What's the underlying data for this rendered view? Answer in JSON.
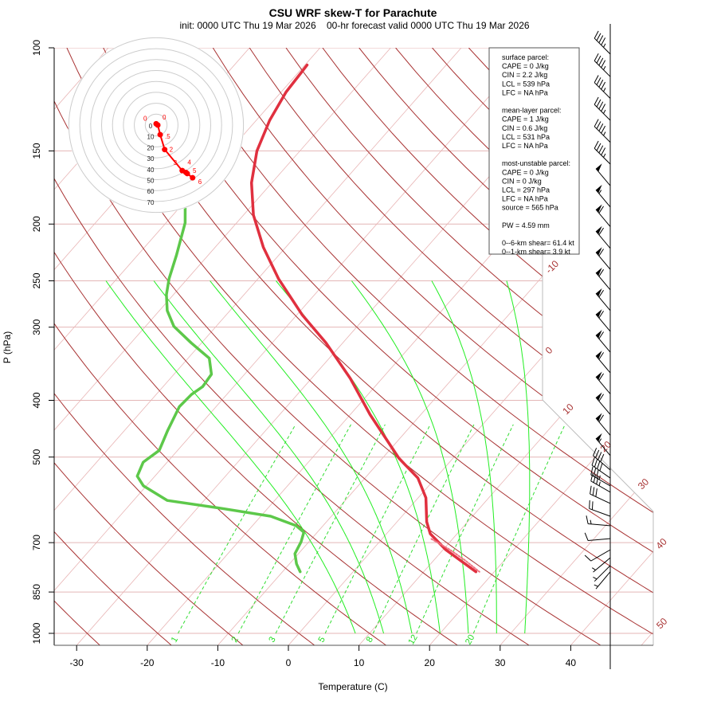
{
  "chart_data": {
    "type": "line",
    "title": "CSU WRF skew-T for Parachute",
    "subtitle": "init: 0000 UTC Thu 19 Mar 2026    00-hr forecast valid 0000 UTC Thu 19 Mar 2026",
    "xlabel": "Temperature (C)",
    "ylabel": "P (hPa)",
    "x_ticks": [
      -30,
      -20,
      -10,
      0,
      10,
      20,
      30,
      40
    ],
    "y_ticks": [
      100,
      150,
      200,
      250,
      300,
      400,
      500,
      700,
      850,
      1000
    ],
    "y_scale": "log",
    "ylim": [
      1000,
      100
    ],
    "isotherm_labels": [
      -10,
      0,
      10,
      20,
      30,
      40,
      50
    ],
    "mixing_ratio_labels": [
      1,
      2,
      3,
      5,
      8,
      12,
      20
    ],
    "colors": {
      "temperature": "#e0303f",
      "dewpoint": "#5dc84a",
      "parcel": "#f07080",
      "dry_adiabat": "#a83232",
      "isotherm": "#e8b4b4",
      "moist_adiabat": "#22ee22",
      "mixing_ratio": "#33dd33",
      "hodograph": "#ff0000"
    },
    "series": [
      {
        "name": "temperature",
        "points_p_T": [
          [
            107,
            -69.7
          ],
          [
            119,
            -69.3
          ],
          [
            133,
            -68.1
          ],
          [
            150,
            -66.1
          ],
          [
            170,
            -62.9
          ],
          [
            193,
            -58.6
          ],
          [
            219,
            -53.2
          ],
          [
            248,
            -47.1
          ],
          [
            286,
            -39.2
          ],
          [
            319,
            -32.4
          ],
          [
            367,
            -24.5
          ],
          [
            423,
            -17.2
          ],
          [
            502,
            -7.7
          ],
          [
            543,
            -2.5
          ],
          [
            587,
            1.1
          ],
          [
            645,
            4.2
          ],
          [
            676,
            6.2
          ],
          [
            720,
            10.4
          ],
          [
            785,
            17.4
          ]
        ]
      },
      {
        "name": "dewpoint",
        "points_p_T": [
          [
            107,
            -84.8
          ],
          [
            181,
            -70.3
          ],
          [
            199,
            -67.3
          ],
          [
            226,
            -64.5
          ],
          [
            248,
            -62.6
          ],
          [
            264,
            -61.0
          ],
          [
            281,
            -58.9
          ],
          [
            299,
            -56.0
          ],
          [
            319,
            -51.5
          ],
          [
            339,
            -47.0
          ],
          [
            361,
            -44.7
          ],
          [
            379,
            -44.4
          ],
          [
            391,
            -45.0
          ],
          [
            410,
            -45.2
          ],
          [
            450,
            -43.9
          ],
          [
            487,
            -42.6
          ],
          [
            510,
            -43.4
          ],
          [
            539,
            -42.5
          ],
          [
            560,
            -40.4
          ],
          [
            593,
            -35.2
          ],
          [
            612,
            -26.4
          ],
          [
            631,
            -18.6
          ],
          [
            655,
            -13.8
          ],
          [
            672,
            -11.9
          ],
          [
            698,
            -11.1
          ],
          [
            731,
            -10.5
          ],
          [
            761,
            -9.0
          ],
          [
            785,
            -7.5
          ]
        ]
      },
      {
        "name": "parcel",
        "points_p_T": [
          [
            690,
            7.0
          ],
          [
            720,
            11.0
          ],
          [
            750,
            14.4
          ],
          [
            785,
            17.9
          ]
        ]
      }
    ],
    "hodograph": {
      "ring_labels": [
        0,
        10,
        20,
        30,
        40,
        50,
        60,
        70
      ],
      "points": [
        {
          "label": "0",
          "u": 0.0,
          "v": 1.2
        },
        {
          "label": "0",
          "u": 1.5,
          "v": 0.0
        },
        {
          "label": ".5",
          "u": 3.7,
          "v": -8.8
        },
        {
          "label": "2",
          "u": 7.8,
          "v": -22.4
        },
        {
          "label": "3",
          "u": 23.9,
          "v": -41.7
        },
        {
          "label": "4",
          "u": 27.3,
          "v": -43.4
        },
        {
          "label": "5",
          "u": 28.5,
          "v": -44.4
        },
        {
          "label": "6",
          "u": 33.4,
          "v": -48.3
        }
      ]
    },
    "wind_barbs": [
      {
        "p": 102.5,
        "dir": 315,
        "kt": 45
      },
      {
        "p": 112,
        "dir": 315,
        "kt": 45
      },
      {
        "p": 122,
        "dir": 315,
        "kt": 45
      },
      {
        "p": 133,
        "dir": 315,
        "kt": 45
      },
      {
        "p": 145,
        "dir": 315,
        "kt": 45
      },
      {
        "p": 158,
        "dir": 315,
        "kt": 45
      },
      {
        "p": 172,
        "dir": 320,
        "kt": 50
      },
      {
        "p": 187,
        "dir": 320,
        "kt": 55
      },
      {
        "p": 202,
        "dir": 320,
        "kt": 60
      },
      {
        "p": 220,
        "dir": 320,
        "kt": 60
      },
      {
        "p": 239,
        "dir": 320,
        "kt": 60
      },
      {
        "p": 259,
        "dir": 320,
        "kt": 60
      },
      {
        "p": 281,
        "dir": 320,
        "kt": 60
      },
      {
        "p": 305,
        "dir": 320,
        "kt": 60
      },
      {
        "p": 331,
        "dir": 320,
        "kt": 60
      },
      {
        "p": 359,
        "dir": 320,
        "kt": 60
      },
      {
        "p": 390,
        "dir": 320,
        "kt": 60
      },
      {
        "p": 423,
        "dir": 320,
        "kt": 60
      },
      {
        "p": 459,
        "dir": 320,
        "kt": 60
      },
      {
        "p": 497,
        "dir": 320,
        "kt": 55
      },
      {
        "p": 526,
        "dir": 310,
        "kt": 40
      },
      {
        "p": 543,
        "dir": 305,
        "kt": 40
      },
      {
        "p": 560,
        "dir": 300,
        "kt": 35
      },
      {
        "p": 574,
        "dir": 300,
        "kt": 35
      },
      {
        "p": 600,
        "dir": 295,
        "kt": 30
      },
      {
        "p": 631,
        "dir": 290,
        "kt": 20
      },
      {
        "p": 655,
        "dir": 275,
        "kt": 15
      },
      {
        "p": 689,
        "dir": 265,
        "kt": 10
      },
      {
        "p": 720,
        "dir": 240,
        "kt": 10
      },
      {
        "p": 743,
        "dir": 230,
        "kt": 5
      },
      {
        "p": 766,
        "dir": 225,
        "kt": 5
      },
      {
        "p": 785,
        "dir": 220,
        "kt": 5
      }
    ]
  },
  "info_box": {
    "lines": [
      "surface parcel:",
      "CAPE = 0 J/kg",
      "CIN = 2.2 J/kg",
      "LCL = 539 hPa",
      "LFC = NA hPa",
      "",
      "mean-layer parcel:",
      "CAPE = 1 J/kg",
      "CIN = 0.6 J/kg",
      "LCL = 531 hPa",
      "LFC = NA hPa",
      "",
      "most-unstable parcel:",
      "CAPE = 0 J/kg",
      "CIN = 0 J/kg",
      "LCL = 297 hPa",
      "LFC = NA hPa",
      "source = 565 hPa",
      "",
      "PW =  4.59 mm",
      "",
      "0--6-km shear= 61.4 kt",
      "0--1-km shear= 3.9 kt"
    ]
  }
}
